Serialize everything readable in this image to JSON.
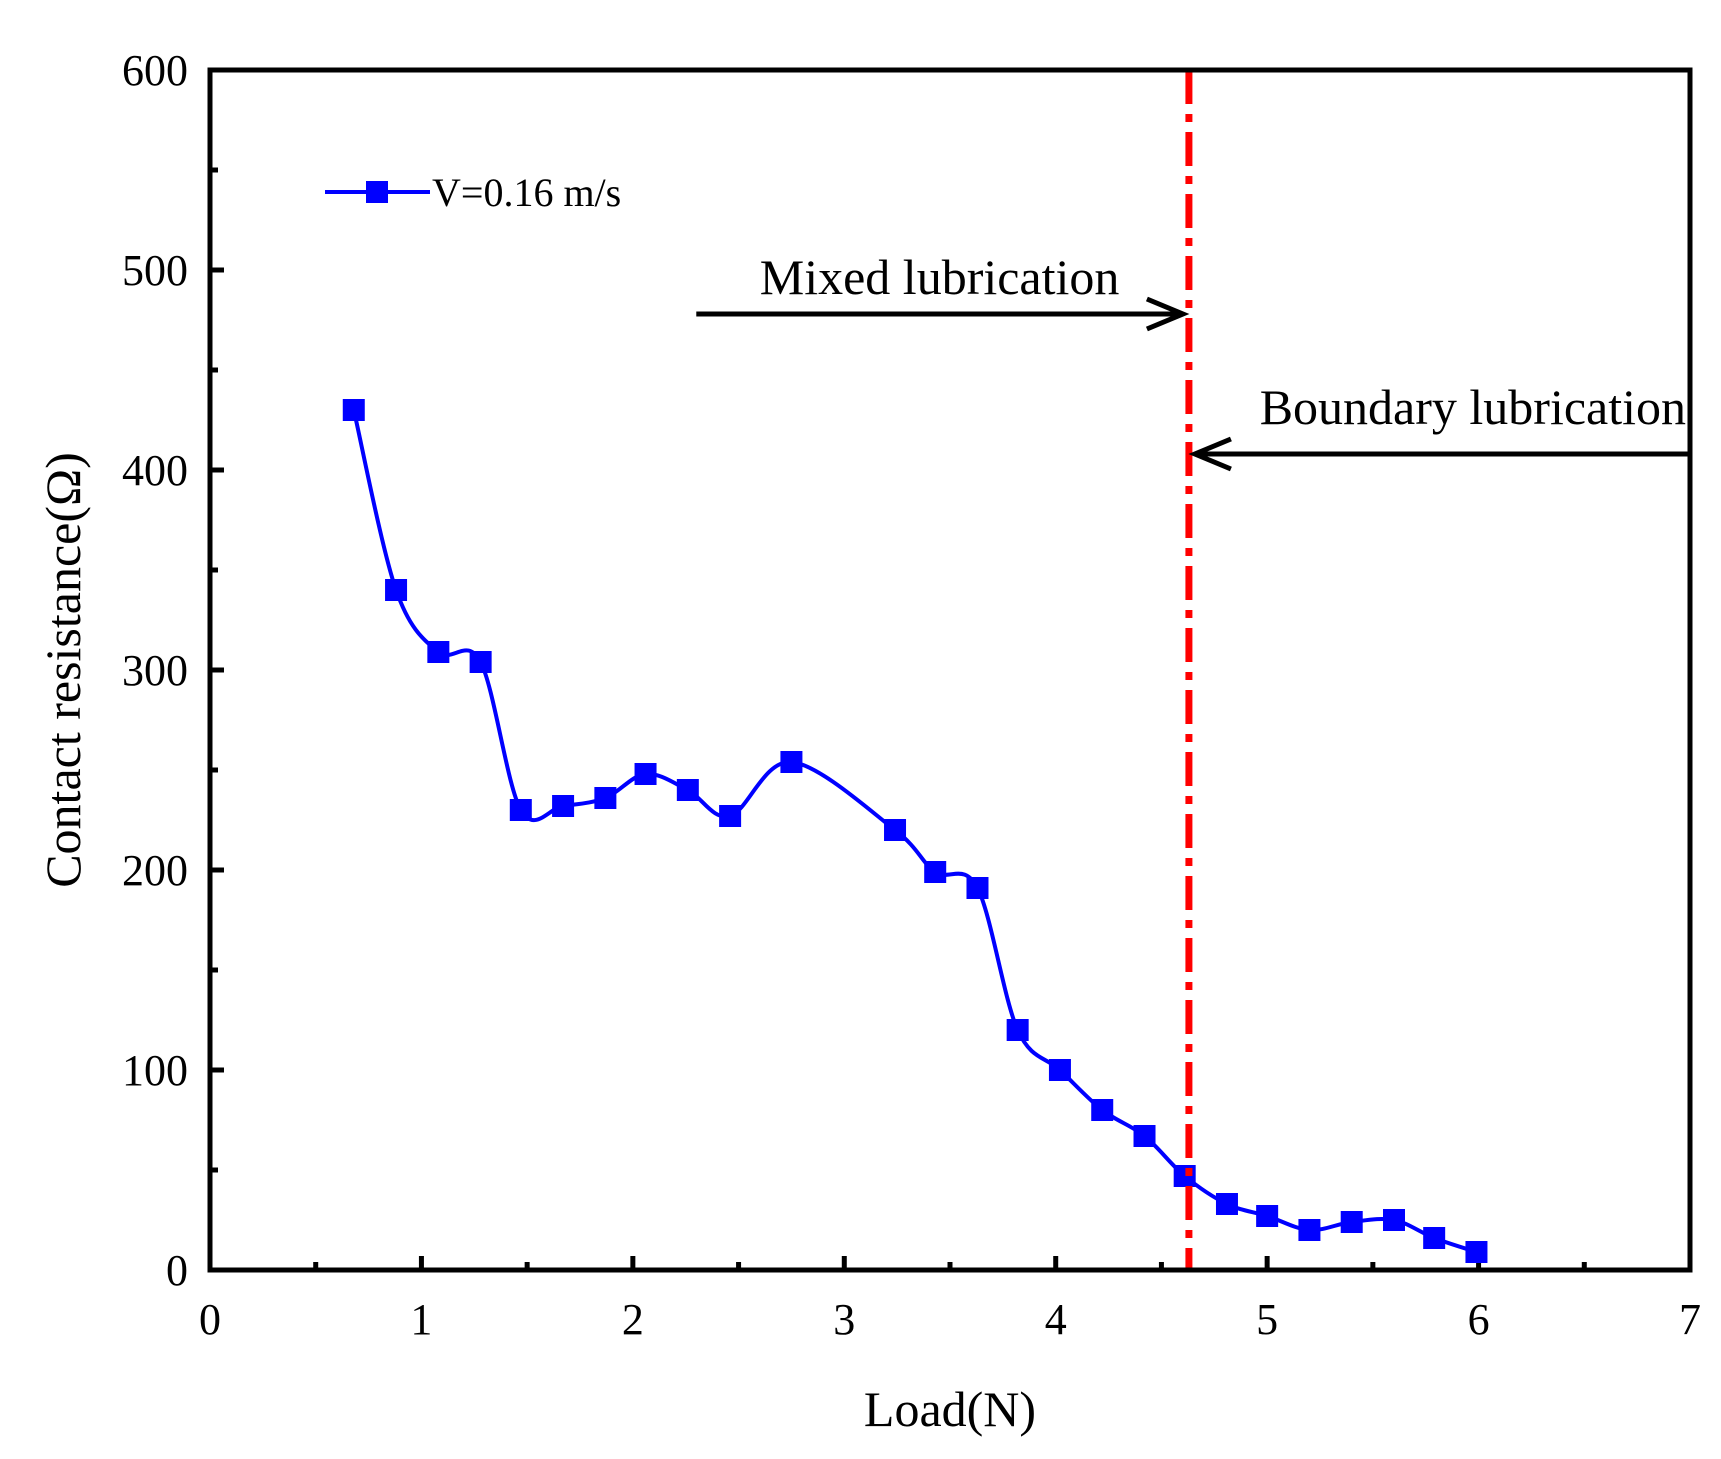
{
  "chart_data": {
    "type": "line",
    "title": "",
    "xlabel": "Load(N)",
    "ylabel": "Contact resistance(Ω)",
    "xlim": [
      0,
      7
    ],
    "ylim": [
      0,
      600
    ],
    "xticks": [
      "0",
      "1",
      "2",
      "3",
      "4",
      "5",
      "6",
      "7"
    ],
    "yticks": [
      "0",
      "100",
      "200",
      "300",
      "400",
      "500",
      "600"
    ],
    "grid": false,
    "legend_position": "top-left",
    "series": [
      {
        "name": "V=0.16 m/s",
        "color": "#0000ff",
        "marker": "square",
        "smooth": true,
        "x": [
          0.68,
          0.88,
          1.08,
          1.28,
          1.47,
          1.67,
          1.87,
          2.06,
          2.26,
          2.46,
          2.75,
          3.24,
          3.43,
          3.63,
          3.82,
          4.02,
          4.22,
          4.42,
          4.61,
          4.81,
          5.0,
          5.2,
          5.4,
          5.6,
          5.79,
          5.99
        ],
        "y": [
          430,
          340,
          309,
          304,
          230,
          232,
          236,
          248,
          240,
          227,
          254,
          220,
          199,
          191,
          120,
          100,
          80,
          67,
          47,
          33,
          27,
          20,
          24,
          25,
          16,
          9
        ]
      }
    ],
    "divider": {
      "x": 4.63,
      "color": "#ff0000",
      "style": "dash-dot"
    },
    "annotations": [
      {
        "text": "Mixed lubrication",
        "arrow_from_x": 2.3,
        "arrow_to_x": 4.63,
        "arrow_y": 478
      },
      {
        "text": "Boundary lubrication",
        "arrow_from_x": 7.0,
        "arrow_to_x": 4.63,
        "arrow_y": 408
      }
    ]
  }
}
